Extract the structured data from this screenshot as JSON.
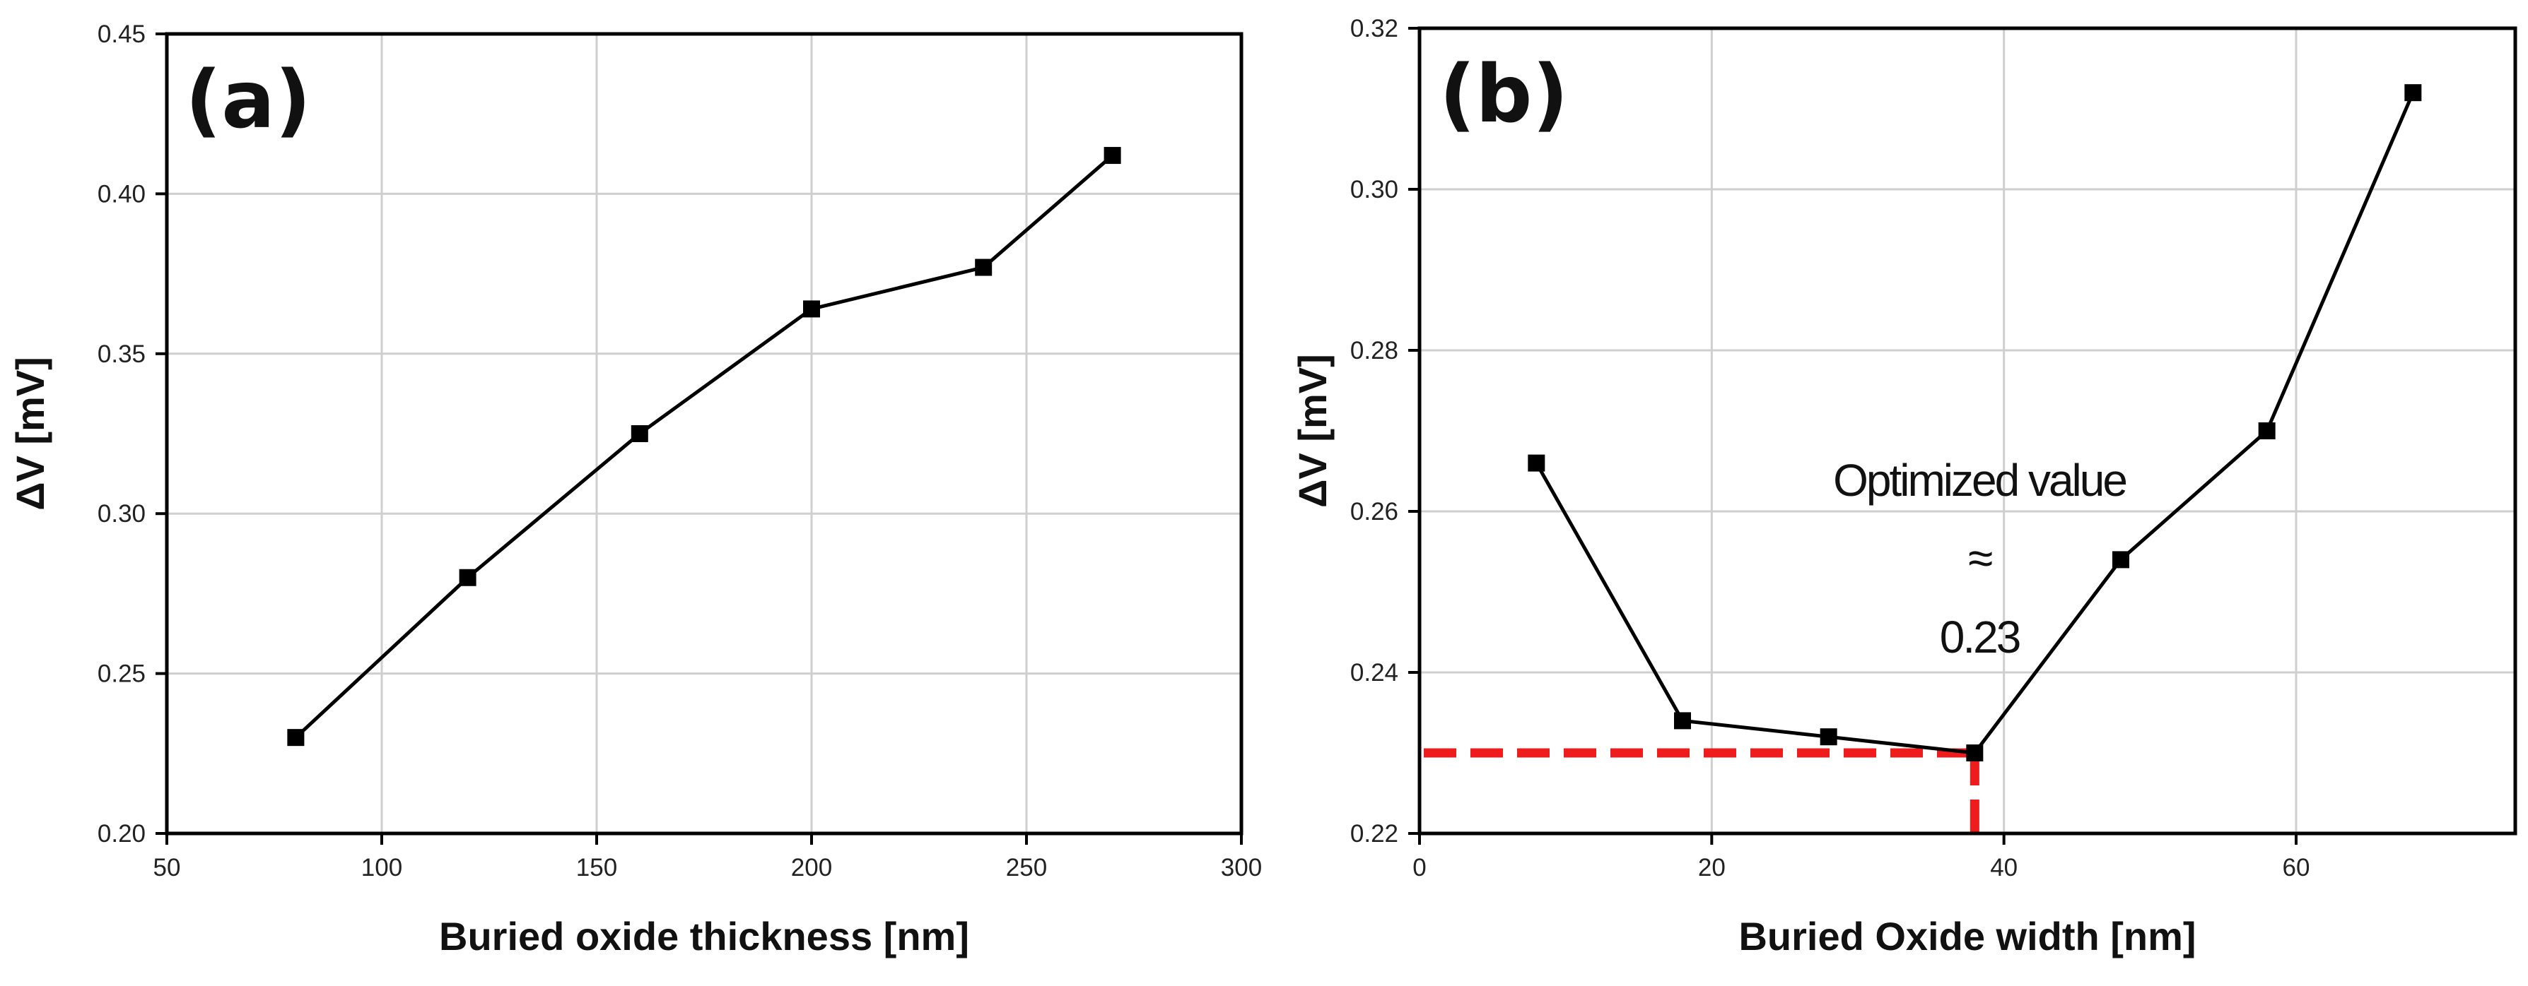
{
  "chart_data": [
    {
      "type": "line",
      "panel_label": "(a)",
      "xlabel": "Buried oxide thickness [nm]",
      "ylabel": "ΔV [mV]",
      "xlim": [
        50,
        300
      ],
      "ylim": [
        0.2,
        0.45
      ],
      "xticks": [
        "50",
        "100",
        "150",
        "200",
        "250",
        "300"
      ],
      "yticks": [
        "0.20",
        "0.25",
        "0.30",
        "0.35",
        "0.40",
        "0.45"
      ],
      "grid": true,
      "series": [
        {
          "name": "ΔV",
          "marker": "square",
          "x": [
            80,
            120,
            160,
            200,
            240,
            270
          ],
          "y": [
            0.23,
            0.28,
            0.325,
            0.364,
            0.377,
            0.412
          ]
        }
      ]
    },
    {
      "type": "line",
      "panel_label": "(b)",
      "xlabel": "Buried Oxide width [nm]",
      "ylabel": "ΔV [mV]",
      "xlim": [
        0,
        75
      ],
      "ylim": [
        0.22,
        0.32
      ],
      "xticks": [
        "0",
        "20",
        "40",
        "60"
      ],
      "yticks": [
        "0.22",
        "0.24",
        "0.26",
        "0.28",
        "0.30",
        "0.32"
      ],
      "grid": true,
      "series": [
        {
          "name": "ΔV",
          "marker": "square",
          "x": [
            8,
            18,
            28,
            38,
            48,
            58,
            68
          ],
          "y": [
            0.266,
            0.234,
            0.232,
            0.23,
            0.254,
            0.27,
            0.312
          ]
        }
      ],
      "annotation": {
        "lines": [
          "Optimized value",
          "≈",
          "0.23"
        ],
        "reference_x": 38,
        "reference_y": 0.23,
        "reference_color": "#ee1c1c"
      }
    }
  ]
}
